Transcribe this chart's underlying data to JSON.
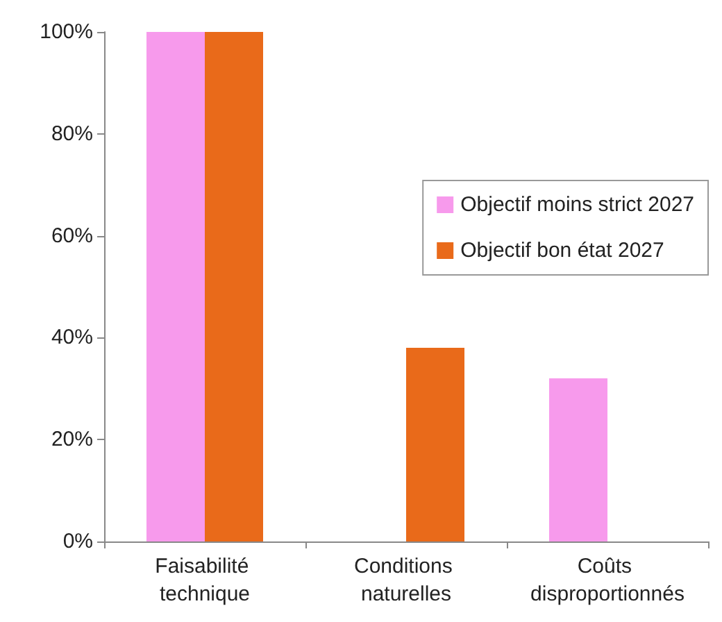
{
  "chart_data": {
    "type": "bar",
    "categories": [
      "Faisabilité technique",
      "Conditions naturelles",
      "Coûts disproportionnés"
    ],
    "series": [
      {
        "name": "Objectif moins strict 2027",
        "color": "#f79aec",
        "values": [
          100,
          0,
          32
        ]
      },
      {
        "name": "Objectif bon état 2027",
        "color": "#e96a1a",
        "values": [
          100,
          38,
          0
        ]
      }
    ],
    "ylim": [
      0,
      100
    ],
    "yticks": [
      {
        "value": 0,
        "label": "0%"
      },
      {
        "value": 20,
        "label": "20%"
      },
      {
        "value": 40,
        "label": "40%"
      },
      {
        "value": 60,
        "label": "60%"
      },
      {
        "value": 80,
        "label": "80%"
      },
      {
        "value": 100,
        "label": "100%"
      }
    ],
    "grid": false,
    "legend": "right"
  }
}
